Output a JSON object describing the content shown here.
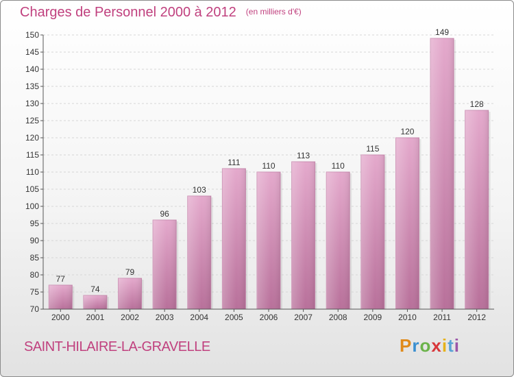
{
  "header": {
    "title": "Charges de Personnel 2000 à 2012",
    "subtitle": "(en milliers d'€)"
  },
  "footer": {
    "city": "SAINT-HILAIRE-LA-GRAVELLE",
    "logo": "Proxiti"
  },
  "colors": {
    "bar_light": "#e4a9cc",
    "bar_dark": "#b8709a",
    "title": "#c0407e"
  },
  "chart_data": {
    "type": "bar",
    "title": "Charges de Personnel 2000 à 2012",
    "subtitle": "(en milliers d'€)",
    "categories": [
      "2000",
      "2001",
      "2002",
      "2003",
      "2004",
      "2005",
      "2006",
      "2007",
      "2008",
      "2009",
      "2010",
      "2011",
      "2012"
    ],
    "values": [
      77,
      74,
      79,
      96,
      103,
      111,
      110,
      113,
      110,
      115,
      120,
      149,
      128
    ],
    "ylim": [
      70,
      150
    ],
    "yticks": [
      70,
      75,
      80,
      85,
      90,
      95,
      100,
      105,
      110,
      115,
      120,
      125,
      130,
      135,
      140,
      145,
      150
    ],
    "grid": true,
    "data_labels": true
  }
}
